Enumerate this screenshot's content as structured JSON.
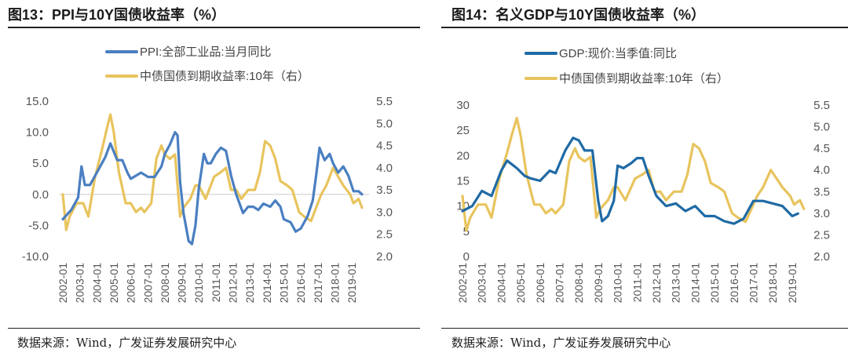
{
  "charts": [
    {
      "title": "图13：PPI与10Y国债收益率（%）",
      "source": "数据来源：Wind，广发证券发展研究中心",
      "legend": [
        "PPI:全部工业品:当月同比",
        "中债国债到期收益率:10年（右）"
      ],
      "colors": [
        "#4a7fc1",
        "#e8c45e"
      ]
    },
    {
      "title": "图14：名义GDP与10Y国债收益率（%）",
      "source": "数据来源：Wind，广发证券发展研究中心",
      "legend": [
        "GDP:现价:当季值:同比",
        "中债国债到期收益率:10年（右）"
      ],
      "colors": [
        "#1f6aa5",
        "#e8c45e"
      ]
    }
  ],
  "chart_data": [
    {
      "type": "line",
      "title": "图13：PPI与10Y国债收益率（%）",
      "x_ticks": [
        "2002-01",
        "2003-01",
        "2004-01",
        "2005-01",
        "2006-01",
        "2007-01",
        "2008-01",
        "2009-01",
        "2010-01",
        "2011-01",
        "2012-01",
        "2013-01",
        "2014-01",
        "2015-01",
        "2016-01",
        "2017-01",
        "2018-01",
        "2019-01"
      ],
      "y_left": {
        "ticks": [
          "15.0",
          "10.0",
          "5.0",
          "0.0",
          "-5.0",
          "-10.0"
        ],
        "range": [
          -10,
          15
        ]
      },
      "y_right": {
        "ticks": [
          "5.5",
          "5.0",
          "4.5",
          "4.0",
          "3.5",
          "3.0",
          "2.5",
          "2.0"
        ],
        "range": [
          2.0,
          5.5
        ]
      },
      "zero_line": true,
      "series": [
        {
          "name": "PPI:全部工业品:当月同比",
          "axis": "left",
          "x": [
            2002.0,
            2002.5,
            2002.9,
            2003.1,
            2003.3,
            2003.6,
            2004.0,
            2004.5,
            2004.8,
            2005.2,
            2005.5,
            2005.8,
            2006.0,
            2006.3,
            2006.6,
            2006.9,
            2007.0,
            2007.4,
            2007.8,
            2008.0,
            2008.3,
            2008.6,
            2008.75,
            2008.9,
            2009.1,
            2009.4,
            2009.6,
            2009.8,
            2010.0,
            2010.3,
            2010.5,
            2010.7,
            2011.0,
            2011.3,
            2011.6,
            2011.9,
            2012.2,
            2012.6,
            2012.9,
            2013.2,
            2013.5,
            2013.8,
            2014.2,
            2014.5,
            2014.8,
            2015.0,
            2015.4,
            2015.7,
            2016.0,
            2016.4,
            2016.7,
            2016.9,
            2017.1,
            2017.4,
            2017.7,
            2017.9,
            2018.2,
            2018.5,
            2018.8,
            2019.1,
            2019.4,
            2019.6
          ],
          "y": [
            -4,
            -2.5,
            -0.5,
            4.5,
            1.5,
            1.5,
            3.5,
            6,
            8.2,
            5.5,
            5.5,
            3.5,
            2.5,
            3,
            3.5,
            3,
            2.8,
            2.8,
            4.5,
            6.5,
            8,
            10,
            9.5,
            2,
            -3,
            -7.5,
            -8,
            -5,
            1,
            6.5,
            5,
            5,
            6.5,
            7.5,
            7,
            3,
            0,
            -3,
            -2,
            -2,
            -2.5,
            -1.5,
            -2,
            -1,
            -2,
            -4,
            -4.5,
            -6,
            -5.5,
            -3.5,
            -1,
            3,
            7.5,
            5.5,
            6.5,
            5,
            3.5,
            4.5,
            3,
            0.5,
            0.5,
            0
          ]
        },
        {
          "name": "中债国债到期收益率:10年（右）",
          "axis": "right",
          "x": [
            2002.0,
            2002.2,
            2002.4,
            2002.8,
            2003.2,
            2003.5,
            2003.9,
            2004.3,
            2004.6,
            2004.8,
            2005.0,
            2005.3,
            2005.7,
            2006.0,
            2006.3,
            2006.6,
            2006.8,
            2007.2,
            2007.5,
            2007.8,
            2008.0,
            2008.3,
            2008.6,
            2008.9,
            2009.1,
            2009.5,
            2009.8,
            2010.0,
            2010.4,
            2010.9,
            2011.3,
            2011.6,
            2011.9,
            2012.2,
            2012.5,
            2012.9,
            2013.3,
            2013.6,
            2013.9,
            2014.2,
            2014.5,
            2014.8,
            2015.2,
            2015.5,
            2015.9,
            2016.2,
            2016.6,
            2016.9,
            2017.2,
            2017.5,
            2017.9,
            2018.2,
            2018.5,
            2018.9,
            2019.1,
            2019.4,
            2019.6
          ],
          "y": [
            3.4,
            2.6,
            2.9,
            3.2,
            3.2,
            2.9,
            3.8,
            4.4,
            4.9,
            5.2,
            4.8,
            3.9,
            3.2,
            3.2,
            3.0,
            3.1,
            3.0,
            3.2,
            4.2,
            4.5,
            4.3,
            4.2,
            4.3,
            2.9,
            3.1,
            3.3,
            3.6,
            3.6,
            3.3,
            3.8,
            3.9,
            4.0,
            3.5,
            3.5,
            3.3,
            3.5,
            3.5,
            3.9,
            4.6,
            4.5,
            4.2,
            3.7,
            3.6,
            3.5,
            3.0,
            2.9,
            2.8,
            3.1,
            3.4,
            3.6,
            4.0,
            3.8,
            3.6,
            3.4,
            3.2,
            3.3,
            3.1
          ]
        }
      ]
    },
    {
      "type": "line",
      "title": "图14：名义GDP与10Y国债收益率（%）",
      "x_ticks": [
        "2002-01",
        "2003-01",
        "2004-01",
        "2005-01",
        "2006-01",
        "2007-01",
        "2008-01",
        "2009-01",
        "2010-01",
        "2011-01",
        "2012-01",
        "2013-01",
        "2014-01",
        "2015-01",
        "2016-01",
        "2017-01",
        "2018-01",
        "2019-01"
      ],
      "y_left": {
        "ticks": [
          "30",
          "25",
          "20",
          "15",
          "10",
          "5",
          "0"
        ],
        "range": [
          0,
          30
        ]
      },
      "y_right": {
        "ticks": [
          "5.5",
          "5.0",
          "4.5",
          "4.0",
          "3.5",
          "3.0",
          "2.5",
          "2.0"
        ],
        "range": [
          2.0,
          5.5
        ]
      },
      "zero_line": false,
      "series": [
        {
          "name": "GDP:现价:当季值:同比",
          "axis": "left",
          "x": [
            2002.0,
            2002.5,
            2003.0,
            2003.5,
            2004.0,
            2004.3,
            2004.8,
            2005.2,
            2005.5,
            2006.0,
            2006.5,
            2006.8,
            2007.3,
            2007.7,
            2008.0,
            2008.3,
            2008.7,
            2009.0,
            2009.2,
            2009.5,
            2009.8,
            2010.0,
            2010.3,
            2010.7,
            2011.0,
            2011.3,
            2011.6,
            2012.0,
            2012.5,
            2013.0,
            2013.5,
            2014.0,
            2014.5,
            2015.0,
            2015.5,
            2016.0,
            2016.5,
            2017.0,
            2017.5,
            2018.0,
            2018.5,
            2019.0,
            2019.3
          ],
          "y": [
            9,
            10,
            13,
            12,
            17,
            19,
            17.5,
            16,
            15.5,
            15,
            17,
            16.5,
            21,
            23.5,
            23,
            21,
            21,
            11,
            7,
            8,
            11,
            18,
            17.5,
            18.5,
            19.5,
            19.5,
            16,
            12,
            10,
            10.5,
            9,
            10,
            8,
            8,
            7,
            6.5,
            7.5,
            11,
            11,
            10.5,
            10,
            8,
            8.5
          ]
        },
        {
          "name": "中债国债到期收益率:10年（右）",
          "axis": "right",
          "x": [
            2002.0,
            2002.2,
            2002.4,
            2002.8,
            2003.2,
            2003.5,
            2003.9,
            2004.3,
            2004.6,
            2004.8,
            2005.0,
            2005.3,
            2005.7,
            2006.0,
            2006.3,
            2006.6,
            2006.8,
            2007.2,
            2007.5,
            2007.8,
            2008.0,
            2008.3,
            2008.6,
            2008.9,
            2009.1,
            2009.5,
            2009.8,
            2010.0,
            2010.4,
            2010.9,
            2011.3,
            2011.6,
            2011.9,
            2012.2,
            2012.5,
            2012.9,
            2013.3,
            2013.6,
            2013.9,
            2014.2,
            2014.5,
            2014.8,
            2015.2,
            2015.5,
            2015.9,
            2016.2,
            2016.6,
            2016.9,
            2017.2,
            2017.5,
            2017.9,
            2018.2,
            2018.5,
            2018.9,
            2019.1,
            2019.4,
            2019.6
          ],
          "y": [
            3.4,
            2.6,
            2.9,
            3.2,
            3.2,
            2.9,
            3.8,
            4.4,
            4.9,
            5.2,
            4.8,
            3.9,
            3.2,
            3.2,
            3.0,
            3.1,
            3.0,
            3.2,
            4.2,
            4.5,
            4.3,
            4.2,
            4.3,
            2.9,
            3.1,
            3.3,
            3.6,
            3.6,
            3.3,
            3.8,
            3.9,
            4.0,
            3.5,
            3.5,
            3.3,
            3.5,
            3.5,
            3.9,
            4.6,
            4.5,
            4.2,
            3.7,
            3.6,
            3.5,
            3.0,
            2.9,
            2.8,
            3.1,
            3.4,
            3.6,
            4.0,
            3.8,
            3.6,
            3.4,
            3.2,
            3.3,
            3.1
          ]
        }
      ]
    }
  ]
}
